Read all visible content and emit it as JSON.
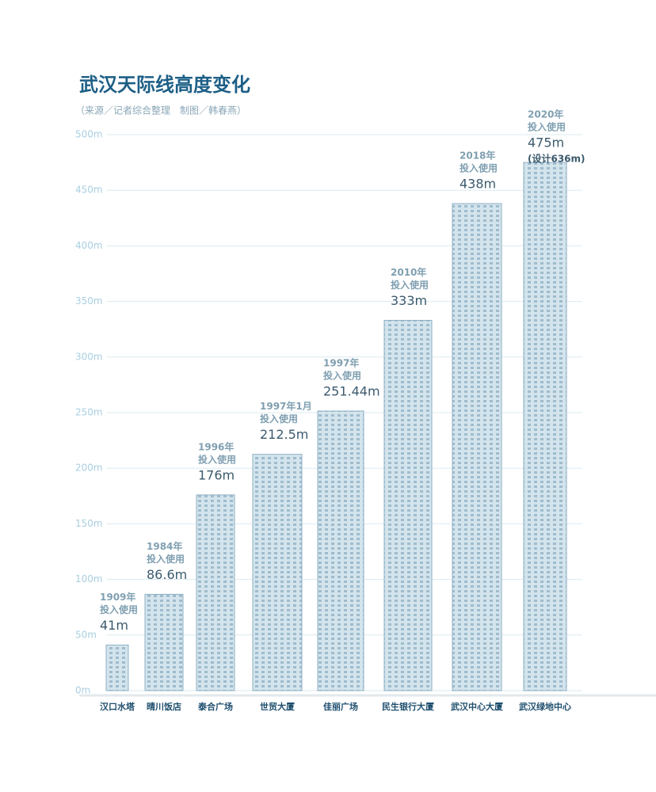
{
  "chart_data": {
    "type": "bar",
    "title": "武汉天际线高度变化",
    "subtitle": "（来源／记者综合整理　制图／韩春燕）",
    "categories": [
      "汉口水塔",
      "晴川饭店",
      "泰合广场",
      "世贸大厦",
      "佳丽广场",
      "民生银行大厦",
      "武汉中心大厦",
      "武汉绿地中心"
    ],
    "values": [
      41,
      86.6,
      176,
      212.5,
      251.44,
      333,
      438,
      475
    ],
    "value_labels": [
      "41m",
      "86.6m",
      "176m",
      "212.5m",
      "251.44m",
      "333m",
      "438m",
      "475m"
    ],
    "years": [
      "1909年",
      "1984年",
      "1996年",
      "1997年1月",
      "1997年",
      "2010年",
      "2018年",
      "2020年"
    ],
    "status": [
      "投入使用",
      "投入使用",
      "投入使用",
      "投入使用",
      "投入使用",
      "投入使用",
      "投入使用",
      "投入使用"
    ],
    "annotation": "(设计636m)",
    "color": "#d3e4ed",
    "ylim": [
      0,
      500
    ],
    "yticks": [
      {
        "value": 0,
        "label": "0m"
      },
      {
        "value": 50,
        "label": "50m"
      },
      {
        "value": 100,
        "label": "100m"
      },
      {
        "value": 150,
        "label": "150m"
      },
      {
        "value": 200,
        "label": "200m"
      },
      {
        "value": 250,
        "label": "250m"
      },
      {
        "value": 300,
        "label": "300m"
      },
      {
        "value": 350,
        "label": "350m"
      },
      {
        "value": 400,
        "label": "400m"
      },
      {
        "value": 450,
        "label": "450m"
      },
      {
        "value": 500,
        "label": "500m"
      }
    ],
    "grid": true
  }
}
